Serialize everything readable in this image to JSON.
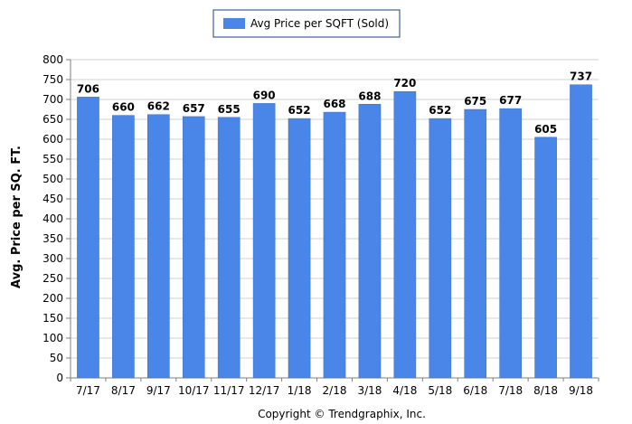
{
  "chart_data": {
    "type": "bar",
    "categories": [
      "7/17",
      "8/17",
      "9/17",
      "10/17",
      "11/17",
      "12/17",
      "1/18",
      "2/18",
      "3/18",
      "4/18",
      "5/18",
      "6/18",
      "7/18",
      "8/18",
      "9/18"
    ],
    "series": [
      {
        "name": "Avg Price per SQFT (Sold)",
        "values": [
          706,
          660,
          662,
          657,
          655,
          690,
          652,
          668,
          688,
          720,
          652,
          675,
          677,
          605,
          737
        ],
        "color": "#4a86e8"
      }
    ],
    "ylabel": "Avg. Price per SQ. FT.",
    "xlabel": "",
    "ylim": [
      0,
      800
    ],
    "yticks": [
      0,
      50,
      100,
      150,
      200,
      250,
      300,
      350,
      400,
      450,
      500,
      550,
      600,
      650,
      700,
      750,
      800
    ],
    "grid": true,
    "legend_position": "top-center",
    "data_labels": true
  },
  "footer": {
    "copyright": "Copyright © Trendgraphix, Inc."
  },
  "colors": {
    "bar": "#4a86e8",
    "bar_edge": "#3b6fc4",
    "grid": "#d0d0d0",
    "axis": "#7f7f7f",
    "legend_border": "#1f3f7f"
  }
}
